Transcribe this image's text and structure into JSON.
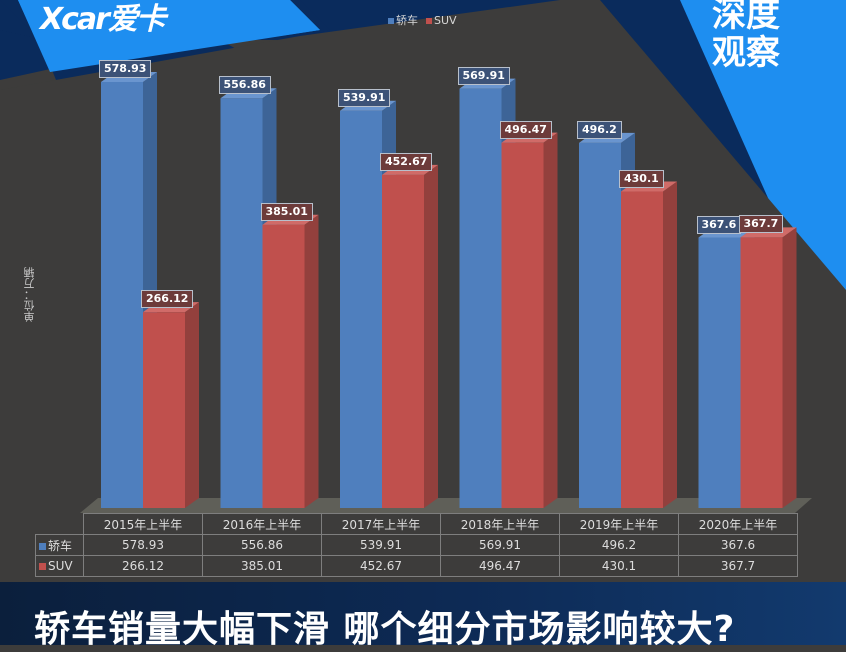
{
  "brand": {
    "logo_text": "Xcar爱卡",
    "badge_line1": "深度",
    "badge_line2": "观察"
  },
  "colors": {
    "sedan": "#4f7fbe",
    "suv": "#c0504d",
    "background": "#3d3c3b",
    "brand_blue": "#1e8ef0",
    "dark_blue": "#0a2b5c"
  },
  "legend": [
    {
      "name": "轿车",
      "color": "#4f7fbe"
    },
    {
      "name": "SUV",
      "color": "#c0504d"
    }
  ],
  "unit_label": "单位：万辆",
  "table": {
    "headers": [
      "2015年上半年",
      "2016年上半年",
      "2017年上半年",
      "2018年上半年",
      "2019年上半年",
      "2020年上半年"
    ],
    "rows": [
      {
        "label": "轿车",
        "values": [
          "578.93",
          "556.86",
          "539.91",
          "569.91",
          "496.2",
          "367.6"
        ]
      },
      {
        "label": "SUV",
        "values": [
          "266.12",
          "385.01",
          "452.67",
          "496.47",
          "430.1",
          "367.7"
        ]
      }
    ]
  },
  "headline": "轿车销量大幅下滑 哪个细分市场影响较大?",
  "chart_data": {
    "type": "bar",
    "title": "",
    "categories": [
      "2015年上半年",
      "2016年上半年",
      "2017年上半年",
      "2018年上半年",
      "2019年上半年",
      "2020年上半年"
    ],
    "series": [
      {
        "name": "轿车",
        "values": [
          578.93,
          556.86,
          539.91,
          569.91,
          496.2,
          367.6
        ]
      },
      {
        "name": "SUV",
        "values": [
          266.12,
          385.01,
          452.67,
          496.47,
          430.1,
          367.7
        ]
      }
    ],
    "xlabel": "",
    "ylabel": "单位：万辆",
    "ylim": [
      0,
      600
    ],
    "grid": false,
    "legend_position": "top",
    "style": "3d clustered column with data table"
  }
}
